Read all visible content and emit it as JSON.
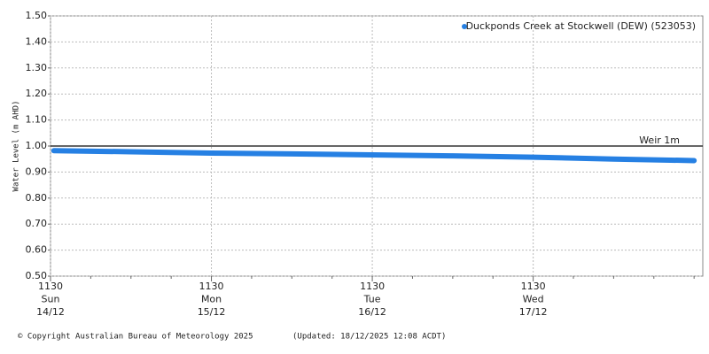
{
  "chart_data": {
    "type": "line",
    "ylabel": "Water Level (m AHD)",
    "x": [
      0.5,
      12,
      24,
      36,
      48,
      60,
      72,
      84,
      96
    ],
    "series": [
      {
        "name": "Duckponds Creek at Stockwell (DEW) (523053)",
        "color": "#2680e3",
        "values": [
          0.982,
          0.978,
          0.973,
          0.97,
          0.966,
          0.962,
          0.957,
          0.95,
          0.944
        ]
      }
    ],
    "xlim": [
      0,
      97.3
    ],
    "xticks": [
      {
        "value": 0,
        "label": [
          "1130",
          "Sun",
          "14/12"
        ]
      },
      {
        "value": 24,
        "label": [
          "1130",
          "Mon",
          "15/12"
        ]
      },
      {
        "value": 48,
        "label": [
          "1130",
          "Tue",
          "16/12"
        ]
      },
      {
        "value": 72,
        "label": [
          "1130",
          "Wed",
          "17/12"
        ]
      }
    ],
    "xminorticks": [
      6,
      12,
      18,
      30,
      36,
      42,
      54,
      60,
      66,
      78,
      84,
      90,
      96
    ],
    "ylim": [
      0.5,
      1.5
    ],
    "yticks": [
      {
        "value": 0.5,
        "label": "0.50"
      },
      {
        "value": 0.6,
        "label": "0.60"
      },
      {
        "value": 0.7,
        "label": "0.70"
      },
      {
        "value": 0.8,
        "label": "0.80"
      },
      {
        "value": 0.9,
        "label": "0.90"
      },
      {
        "value": 1.0,
        "label": "1.00"
      },
      {
        "value": 1.1,
        "label": "1.10"
      },
      {
        "value": 1.2,
        "label": "1.20"
      },
      {
        "value": 1.3,
        "label": "1.30"
      },
      {
        "value": 1.4,
        "label": "1.40"
      },
      {
        "value": 1.5,
        "label": "1.50"
      }
    ],
    "grid": true,
    "legend": "top-right",
    "reference_lines": [
      {
        "value": 1.0,
        "label": "Weir 1m",
        "color": "#333333"
      }
    ]
  },
  "footer": {
    "copyright": "© Copyright Australian Bureau of Meteorology 2025",
    "updated": "(Updated: 18/12/2025 12:08 ACDT)"
  }
}
